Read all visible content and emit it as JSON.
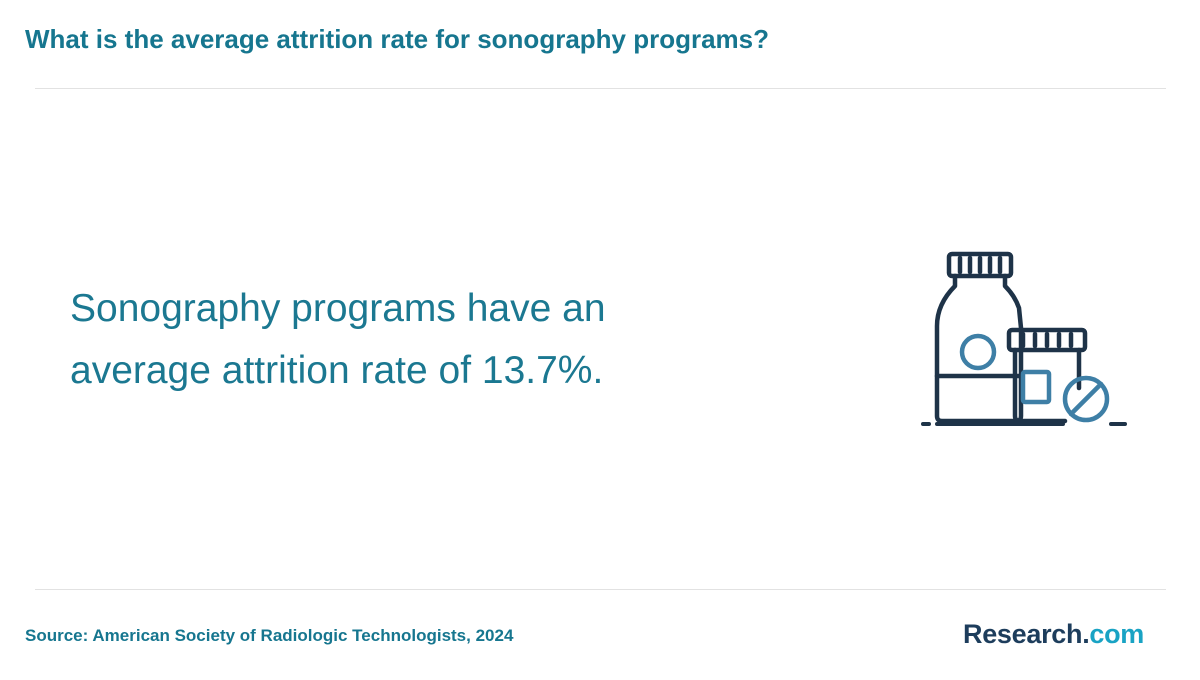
{
  "header": {
    "title": "What is the average attrition rate for sonography programs?"
  },
  "main": {
    "statement_line1": "Sonography programs have an",
    "statement_line2": "average attrition rate of 13.7%.",
    "illustration": {
      "icon": "medicine-bottles-icon",
      "colors": {
        "outline": "#1e3348",
        "accent": "#3e7fa6"
      }
    }
  },
  "footer": {
    "source": "Source: American Society of Radiologic Technologists, 2024",
    "logo": {
      "main": "Research",
      "dot": ".",
      "tld": "com"
    }
  },
  "colors": {
    "title": "#16768f",
    "body": "#1b7891",
    "logo_dark": "#1d3d5c",
    "logo_accent": "#19a3c4",
    "divider": "#e2e2e2"
  }
}
